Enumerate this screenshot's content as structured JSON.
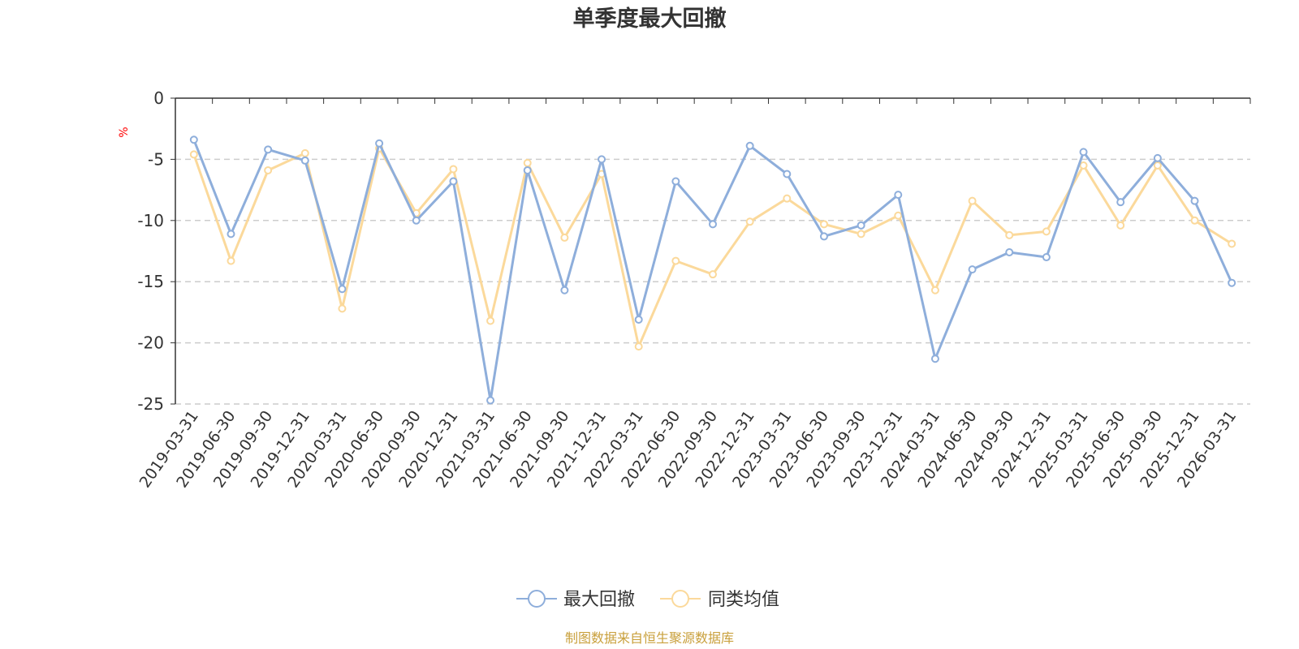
{
  "chart_data": {
    "type": "line",
    "title": "单季度最大回撤",
    "ylabel": "%",
    "ylim": [
      -25,
      0
    ],
    "yticks": [
      0,
      -5,
      -10,
      -15,
      -20,
      -25
    ],
    "categories": [
      "2019-03-31",
      "2019-06-30",
      "2019-09-30",
      "2019-12-31",
      "2020-03-31",
      "2020-06-30",
      "2020-09-30",
      "2020-12-31",
      "2021-03-31",
      "2021-06-30",
      "2021-09-30",
      "2021-12-31",
      "2022-03-31",
      "2022-06-30",
      "2022-09-30",
      "2022-12-31",
      "2023-03-31",
      "2023-06-30",
      "2023-09-30",
      "2023-12-31",
      "2024-03-31",
      "2024-06-30",
      "2024-09-30",
      "2024-12-31",
      "2025-03-31",
      "2025-06-30",
      "2025-09-30",
      "2025-12-31",
      "2026-03-31"
    ],
    "series": [
      {
        "name": "最大回撤",
        "color": "#8eaedb",
        "values": [
          -3.4,
          -11.1,
          -4.2,
          -5.1,
          -15.6,
          -3.7,
          -10.0,
          -6.8,
          -24.7,
          -5.9,
          -15.7,
          -5.0,
          -18.1,
          -6.8,
          -10.3,
          -3.9,
          -6.2,
          -11.3,
          -10.4,
          -7.9,
          -21.3,
          -14.0,
          -12.6,
          -13.0,
          -4.4,
          -8.5,
          -4.9,
          -8.4,
          -15.1
        ]
      },
      {
        "name": "同类均值",
        "color": "#fbd99b",
        "values": [
          -4.6,
          -13.3,
          -5.9,
          -4.5,
          -17.2,
          -4.1,
          -9.4,
          -5.8,
          -18.2,
          -5.3,
          -11.4,
          -6.2,
          -20.3,
          -13.3,
          -14.4,
          -10.1,
          -8.2,
          -10.3,
          -11.1,
          -9.6,
          -15.7,
          -8.4,
          -11.2,
          -10.9,
          -5.5,
          -10.4,
          -5.5,
          -10.0,
          -11.9
        ]
      }
    ],
    "grid": true,
    "legend_position": "bottom-center"
  },
  "footer": {
    "source": "制图数据来自恒生聚源数据库"
  }
}
